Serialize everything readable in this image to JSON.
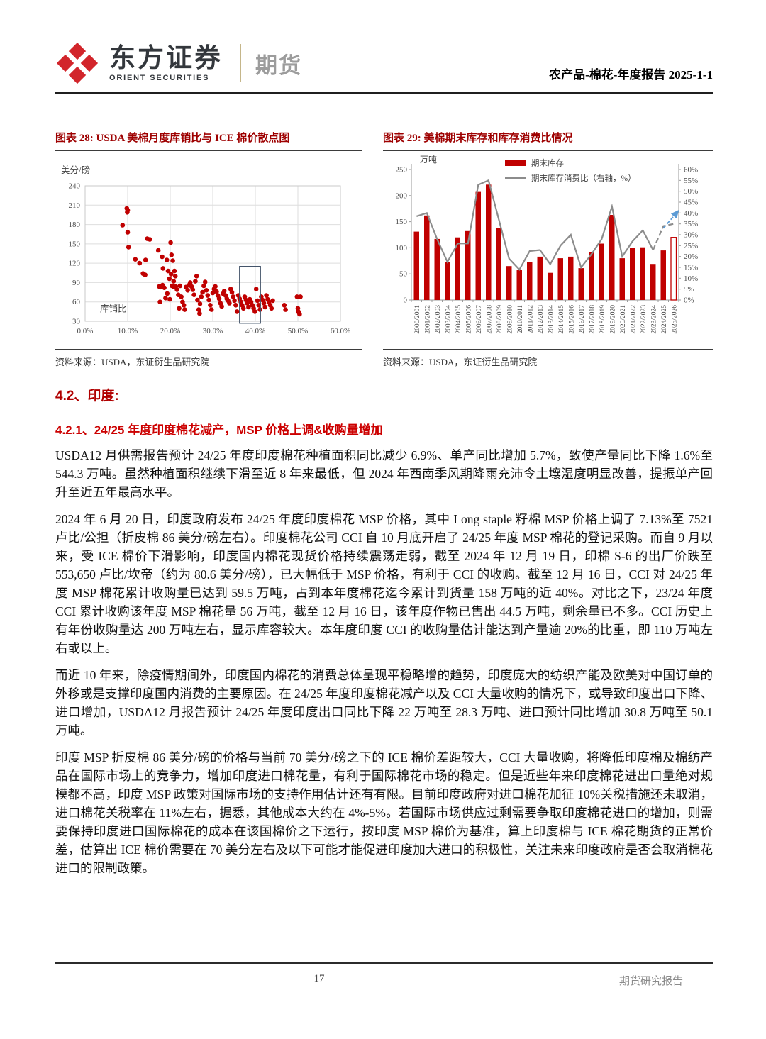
{
  "header": {
    "brand_cn": "东方证券",
    "brand_en": "ORIENT SECURITIES",
    "division": "期货",
    "doc_info": "农产品-棉花-年度报告 2025-1-1"
  },
  "figures": {
    "fig28_title": "图表 28: USDA 美棉月度库销比与 ICE 棉价散点图",
    "fig28_source": "资料来源：USDA，东证衍生品研究院",
    "fig29_title": "图表 29: 美棉期末库存和库存消费比情况",
    "fig29_source": "资料来源：USDA，东证衍生品研究院"
  },
  "chart_data": [
    {
      "type": "scatter",
      "title": "USDA 美棉月度库销比与 ICE 棉价散点图",
      "unit_label": "美分/磅",
      "inner_label": "库销比",
      "xlim": [
        0,
        60
      ],
      "ylim": [
        30,
        240
      ],
      "x_tick_values": [
        0,
        10,
        20,
        30,
        40,
        50,
        60
      ],
      "x_ticks": [
        "0.0%",
        "10.0%",
        "20.0%",
        "30.0%",
        "40.0%",
        "50.0%",
        "60.0%"
      ],
      "y_ticks": [
        240,
        210,
        180,
        150,
        120,
        90,
        60,
        30
      ],
      "point_color": "#c00000",
      "grid": true,
      "highlight_box": {
        "x1": 36.3,
        "x2": 41.2,
        "y1": 27,
        "y2": 115,
        "color": "#44546a"
      },
      "points": [
        [
          9.8,
          205
        ],
        [
          10.0,
          202
        ],
        [
          9.9,
          199
        ],
        [
          8.8,
          179
        ],
        [
          10.0,
          168
        ],
        [
          10.2,
          145
        ],
        [
          11.8,
          126
        ],
        [
          12.8,
          120
        ],
        [
          13.6,
          104
        ],
        [
          14.1,
          102
        ],
        [
          14.2,
          125
        ],
        [
          14.6,
          158
        ],
        [
          15.2,
          157
        ],
        [
          17.2,
          140
        ],
        [
          18.1,
          130
        ],
        [
          19.2,
          125
        ],
        [
          18.3,
          112
        ],
        [
          19.5,
          108
        ],
        [
          19.8,
          96
        ],
        [
          20.1,
          152
        ],
        [
          20.3,
          133
        ],
        [
          20.6,
          124
        ],
        [
          20.2,
          103
        ],
        [
          21.0,
          108
        ],
        [
          21.2,
          100
        ],
        [
          20.8,
          92
        ],
        [
          17.4,
          84
        ],
        [
          17.8,
          83
        ],
        [
          18.2,
          86
        ],
        [
          18.6,
          82
        ],
        [
          17.6,
          60
        ],
        [
          18.9,
          66
        ],
        [
          19.3,
          73
        ],
        [
          19.9,
          64
        ],
        [
          20.4,
          85
        ],
        [
          20.9,
          83
        ],
        [
          21.3,
          84
        ],
        [
          21.6,
          79
        ],
        [
          21.9,
          71
        ],
        [
          22.1,
          50
        ],
        [
          22.3,
          85
        ],
        [
          22.6,
          68
        ],
        [
          22.9,
          60
        ],
        [
          23.2,
          55
        ],
        [
          23.4,
          48
        ],
        [
          23.7,
          83
        ],
        [
          24.1,
          78
        ],
        [
          24.4,
          86
        ],
        [
          24.7,
          90
        ],
        [
          25.0,
          84
        ],
        [
          25.3,
          79
        ],
        [
          25.6,
          71
        ],
        [
          25.9,
          92
        ],
        [
          26.2,
          100
        ],
        [
          26.4,
          63
        ],
        [
          26.7,
          48
        ],
        [
          26.9,
          42
        ],
        [
          27.0,
          57
        ],
        [
          27.3,
          68
        ],
        [
          27.6,
          75
        ],
        [
          27.9,
          85
        ],
        [
          28.2,
          91
        ],
        [
          28.5,
          78
        ],
        [
          28.8,
          70
        ],
        [
          29.1,
          63
        ],
        [
          29.4,
          55
        ],
        [
          29.7,
          48
        ],
        [
          30.0,
          74
        ],
        [
          30.3,
          80
        ],
        [
          30.6,
          84
        ],
        [
          30.9,
          76
        ],
        [
          31.2,
          70
        ],
        [
          31.5,
          65
        ],
        [
          31.8,
          58
        ],
        [
          32.1,
          53
        ],
        [
          32.4,
          73
        ],
        [
          32.7,
          77
        ],
        [
          33.0,
          70
        ],
        [
          33.3,
          65
        ],
        [
          33.6,
          62
        ],
        [
          33.9,
          58
        ],
        [
          34.2,
          80
        ],
        [
          34.5,
          75
        ],
        [
          34.8,
          68
        ],
        [
          35.1,
          62
        ],
        [
          35.4,
          55
        ],
        [
          35.7,
          45
        ],
        [
          36.0,
          70
        ],
        [
          36.3,
          65
        ],
        [
          36.6,
          60
        ],
        [
          36.9,
          55
        ],
        [
          37.2,
          50
        ],
        [
          37.5,
          68
        ],
        [
          37.8,
          63
        ],
        [
          38.1,
          58
        ],
        [
          38.4,
          52
        ],
        [
          38.7,
          64
        ],
        [
          39.0,
          60
        ],
        [
          39.3,
          55
        ],
        [
          39.6,
          50
        ],
        [
          39.9,
          45
        ],
        [
          40.2,
          80
        ],
        [
          40.5,
          62
        ],
        [
          40.8,
          55
        ],
        [
          41.1,
          48
        ],
        [
          41.4,
          68
        ],
        [
          41.7,
          63
        ],
        [
          42.0,
          58
        ],
        [
          42.3,
          52
        ],
        [
          42.6,
          70
        ],
        [
          42.9,
          64
        ],
        [
          43.2,
          60
        ],
        [
          43.5,
          55
        ],
        [
          43.8,
          50
        ],
        [
          44.1,
          62
        ],
        [
          46.8,
          55
        ],
        [
          47.1,
          48
        ],
        [
          49.8,
          68
        ],
        [
          50.6,
          68
        ],
        [
          50.0,
          50
        ],
        [
          50.1,
          45
        ],
        [
          50.3,
          43
        ],
        [
          50.4,
          41
        ]
      ]
    },
    {
      "type": "bar-line",
      "title": "美棉期末库存和库存消费比情况",
      "unit_label": "万吨",
      "categories": [
        "2000/2001",
        "2001/2002",
        "2002/2003",
        "2003/2004",
        "2004/2005",
        "2005/2006",
        "2006/2007",
        "2007/2008",
        "2008/2009",
        "2009/2010",
        "2010/2011",
        "2011/2012",
        "2012/2013",
        "2013/2014",
        "2014/2015",
        "2015/2016",
        "2016/2017",
        "2017/2018",
        "2018/2019",
        "2019/2020",
        "2020/2021",
        "2021/2022",
        "2022/2023",
        "2023/2024",
        "2024/2025",
        "2025/2026"
      ],
      "series": [
        {
          "name": "期末库存",
          "type": "bar",
          "axis": "left",
          "color": "#c00000",
          "hollow_last": true,
          "values": [
            131,
            162,
            117,
            72,
            120,
            132,
            207,
            221,
            138,
            65,
            57,
            73,
            83,
            52,
            80,
            83,
            61,
            91,
            108,
            163,
            80,
            100,
            101,
            69,
            95,
            120
          ]
        },
        {
          "name": "期末库存消费比（右轴，%）",
          "type": "line",
          "axis": "right",
          "color": "#8c8c8c",
          "dashed_from": 23,
          "values": [
            38.5,
            40,
            28,
            17.5,
            26,
            26,
            53,
            55,
            37,
            19,
            14,
            22.5,
            23,
            16.5,
            25,
            30,
            15,
            21,
            28,
            43,
            20,
            27,
            32,
            23,
            34,
            35
          ]
        }
      ],
      "left_axis": {
        "min": 0,
        "max": 250,
        "step": 50
      },
      "right_axis": {
        "min": 0,
        "max": 60,
        "step": 5,
        "suffix": "%"
      },
      "legend_position": "top",
      "grid": false,
      "arrow": {
        "color": "#5b9bd5",
        "from": [
          24.0,
          33
        ],
        "to": [
          25.45,
          41
        ]
      }
    }
  ],
  "body": {
    "section_heading": "4.2、印度:",
    "sub_heading": "4.2.1、24/25 年度印度棉花减产，MSP 价格上调&收购量增加",
    "paragraphs": [
      "USDA12 月供需报告预计 24/25 年度印度棉花种植面积同比减少 6.9%、单产同比增加 5.7%，致使产量同比下降 1.6%至 544.3 万吨。虽然种植面积继续下滑至近 8 年来最低，但 2024 年西南季风期降雨充沛令土壤湿度明显改善，提振单产回升至近五年最高水平。",
      "2024 年 6 月 20 日，印度政府发布 24/25 年度印度棉花 MSP 价格，其中 Long staple 籽棉 MSP 价格上调了 7.13%至 7521 卢比/公担（折皮棉 86 美分/磅左右）。印度棉花公司 CCI 自 10 月底开启了 24/25 年度 MSP 棉花的登记采购。而自 9 月以来，受 ICE 棉价下滑影响，印度国内棉花现货价格持续震荡走弱，截至 2024 年 12 月 19 日，印棉 S-6 的出厂价跌至 553,650 卢比/坎帝（约为 80.6 美分/磅），已大幅低于 MSP 价格，有利于 CCI 的收购。截至 12 月 16 日，CCI 对 24/25 年度 MSP 棉花累计收购量已达到 59.5 万吨，占到本年度棉花迄今累计到货量 158 万吨的近 40%。对比之下，23/24 年度 CCI 累计收购该年度 MSP 棉花量 56 万吨，截至 12 月 16 日，该年度作物已售出 44.5 万吨，剩余量已不多。CCI 历史上有年份收购量达 200 万吨左右，显示库容较大。本年度印度 CCI 的收购量估计能达到产量逾 20%的比重，即 110 万吨左右或以上。",
      "而近 10 年来，除疫情期间外，印度国内棉花的消费总体呈现平稳略增的趋势，印度庞大的纺织产能及欧美对中国订单的外移或是支撑印度国内消费的主要原因。在 24/25 年度印度棉花减产以及 CCI 大量收购的情况下，或导致印度出口下降、进口增加，USDA12 月报告预计 24/25 年度印度出口同比下降 22 万吨至 28.3 万吨、进口预计同比增加 30.8 万吨至 50.1 万吨。",
      "印度 MSP 折皮棉 86 美分/磅的价格与当前 70 美分/磅之下的 ICE 棉价差距较大，CCI 大量收购，将降低印度棉及棉纺产品在国际市场上的竞争力，增加印度进口棉花量，有利于国际棉花市场的稳定。但是近些年来印度棉花进出口量绝对规模都不高，印度 MSP 政策对国际市场的支持作用估计还有有限。目前印度政府对进口棉花加征 10%关税措施还未取消，进口棉花关税率在 11%左右，据悉，其他成本大约在 4%-5%。若国际市场供应过剩需要争取印度棉花进口的增加，则需要保持印度进口国际棉花的成本在该国棉价之下运行，按印度 MSP 棉价为基准，算上印度棉与 ICE 棉花期货的正常价差，估算出 ICE 棉价需要在 70 美分左右及以下可能才能促进印度加大进口的积极性，关注未来印度政府是否会取消棉花进口的限制政策。"
    ]
  },
  "footer": {
    "page_number": "17",
    "report_type": "期货研究报告"
  },
  "colors": {
    "accent_red": "#c00000",
    "figure_title_red": "#9e0000",
    "bar_red": "#c00000",
    "line_gray": "#8c8c8c",
    "arrow_blue": "#5b9bd5",
    "logo_red": "#d2252b"
  }
}
